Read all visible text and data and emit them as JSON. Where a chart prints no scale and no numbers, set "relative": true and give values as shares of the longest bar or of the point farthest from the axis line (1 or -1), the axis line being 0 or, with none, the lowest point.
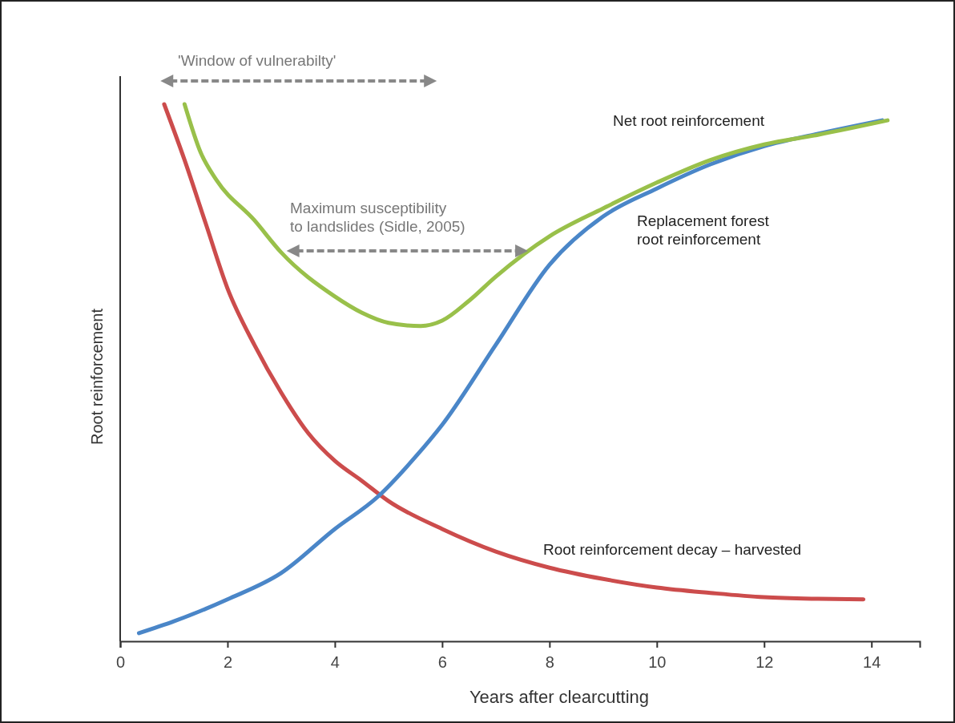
{
  "chart_data": {
    "type": "line",
    "xlabel": "Years after clearcutting",
    "ylabel": "Root reinforcement",
    "relative": true,
    "xlim": [
      0,
      14.9
    ],
    "xticks": [
      0,
      2,
      4,
      6,
      8,
      10,
      12,
      14
    ],
    "annotations": [
      "'Window of vulnerabilty'",
      "Maximum susceptibility\nto landslides (Sidle, 2005)"
    ],
    "series": [
      {
        "name": "Root reinforcement decay – harvested",
        "color": "#cc4c4c",
        "x": [
          0.82,
          1.2,
          1.6,
          2,
          2.5,
          3,
          3.5,
          4,
          4.5,
          5,
          6,
          7,
          8,
          9,
          10,
          11,
          12,
          13,
          13.85
        ],
        "values": [
          1.0,
          0.896,
          0.776,
          0.657,
          0.552,
          0.463,
          0.388,
          0.336,
          0.299,
          0.261,
          0.209,
          0.167,
          0.137,
          0.116,
          0.1,
          0.09,
          0.082,
          0.079,
          0.078
        ]
      },
      {
        "name": "Replacement forest\nroot reinforcement",
        "color": "#4a86c8",
        "x": [
          0.35,
          1,
          2,
          3,
          4,
          4.8,
          5.5,
          6,
          7,
          8,
          9,
          10,
          11,
          12,
          13,
          14.2
        ],
        "values": [
          0.015,
          0.037,
          0.078,
          0.127,
          0.209,
          0.269,
          0.343,
          0.403,
          0.552,
          0.701,
          0.791,
          0.843,
          0.888,
          0.922,
          0.945,
          0.97
        ]
      },
      {
        "name": "Net root reinforcement",
        "color": "#99c04a",
        "x": [
          1.2,
          1.5,
          1.8,
          2.5,
          3,
          4,
          4.5,
          5,
          5.6,
          6,
          6.5,
          7,
          8,
          9,
          10,
          11,
          12,
          13,
          14.3
        ],
        "values": [
          1.0,
          0.91,
          0.858,
          0.784,
          0.724,
          0.642,
          0.612,
          0.593,
          0.587,
          0.597,
          0.634,
          0.679,
          0.754,
          0.806,
          0.854,
          0.896,
          0.925,
          0.943,
          0.97
        ]
      }
    ]
  }
}
